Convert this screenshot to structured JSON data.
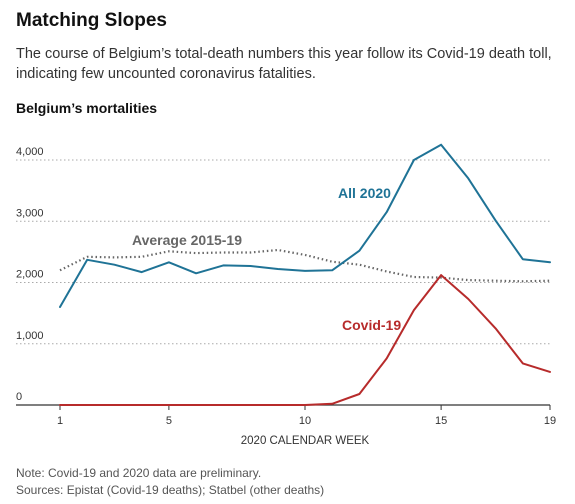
{
  "header": {
    "title": "Matching Slopes",
    "subtitle": "The course of Belgium’s total-death numbers this year follow its Covid-19 death toll, indicating few uncounted coronavirus fatalities."
  },
  "chart_data": {
    "type": "line",
    "title": "Belgium’s mortalities",
    "xlabel": "2020 CALENDAR WEEK",
    "ylabel": "",
    "xlim": [
      1,
      19
    ],
    "ylim": [
      0,
      4500
    ],
    "x_ticks": [
      1,
      5,
      10,
      15,
      19
    ],
    "y_ticks": [
      {
        "value": 0,
        "label": "0"
      },
      {
        "value": 1000,
        "label": "1,000"
      },
      {
        "value": 2000,
        "label": "2,000"
      },
      {
        "value": 3000,
        "label": "3,000"
      },
      {
        "value": 4000,
        "label": "4,000"
      }
    ],
    "grid": "horizontal-dotted",
    "x": [
      1,
      2,
      3,
      4,
      5,
      6,
      7,
      8,
      9,
      10,
      11,
      12,
      13,
      14,
      15,
      16,
      17,
      18,
      19
    ],
    "series": [
      {
        "name": "All 2020",
        "color": "#1f7396",
        "style": "solid",
        "values": [
          1600,
          2370,
          2290,
          2170,
          2330,
          2150,
          2280,
          2270,
          2220,
          2190,
          2200,
          2520,
          3150,
          4000,
          4250,
          3700,
          3010,
          2380,
          2330
        ]
      },
      {
        "name": "Average 2015-19",
        "color": "#666666",
        "style": "dotted",
        "values": [
          2200,
          2420,
          2410,
          2420,
          2510,
          2480,
          2490,
          2490,
          2530,
          2450,
          2340,
          2290,
          2180,
          2090,
          2080,
          2040,
          2030,
          2020,
          2030
        ]
      },
      {
        "name": "Covid-19",
        "color": "#b72b2b",
        "style": "solid",
        "values": [
          0,
          0,
          0,
          0,
          0,
          0,
          0,
          0,
          0,
          0,
          20,
          180,
          760,
          1550,
          2120,
          1730,
          1250,
          680,
          540
        ]
      }
    ]
  },
  "footer": {
    "note": "Note: Covid-19 and 2020 data are preliminary.",
    "sources": "Sources: Epistat (Covid-19 deaths); Statbel (other deaths)"
  }
}
